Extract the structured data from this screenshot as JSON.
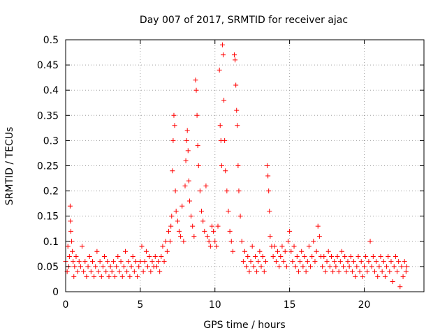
{
  "chart_data": {
    "type": "scatter",
    "title": "Day 007 of 2017, SRMTID for receiver ajac",
    "xlabel": "GPS time / hours",
    "ylabel": "SRMTID / TECUs",
    "xlim": [
      0,
      24
    ],
    "ylim": [
      0,
      0.5
    ],
    "xticks": [
      0,
      5,
      10,
      15,
      20
    ],
    "xtick_labels": [
      "0",
      "5",
      "10",
      "15",
      "20"
    ],
    "yticks": [
      0,
      0.05,
      0.1,
      0.15,
      0.2,
      0.25,
      0.3,
      0.35,
      0.4,
      0.45,
      0.5
    ],
    "ytick_labels": [
      "0",
      "0.05",
      "0.1",
      "0.15",
      "0.2",
      "0.25",
      "0.3",
      "0.35",
      "0.4",
      "0.45",
      "0.5"
    ],
    "grid": true,
    "marker": "+",
    "color": "#ff0000",
    "series": [
      {
        "name": "SRMTID",
        "points": [
          [
            0.0,
            0.06
          ],
          [
            0.1,
            0.04
          ],
          [
            0.15,
            0.09
          ],
          [
            0.2,
            0.05
          ],
          [
            0.25,
            0.07
          ],
          [
            0.3,
            0.17
          ],
          [
            0.32,
            0.14
          ],
          [
            0.35,
            0.12
          ],
          [
            0.4,
            0.1
          ],
          [
            0.45,
            0.08
          ],
          [
            0.5,
            0.06
          ],
          [
            0.55,
            0.03
          ],
          [
            0.6,
            0.05
          ],
          [
            0.7,
            0.07
          ],
          [
            0.8,
            0.04
          ],
          [
            0.9,
            0.06
          ],
          [
            1.0,
            0.05
          ],
          [
            1.1,
            0.09
          ],
          [
            1.2,
            0.04
          ],
          [
            1.3,
            0.06
          ],
          [
            1.4,
            0.03
          ],
          [
            1.5,
            0.05
          ],
          [
            1.6,
            0.07
          ],
          [
            1.7,
            0.04
          ],
          [
            1.8,
            0.06
          ],
          [
            1.9,
            0.03
          ],
          [
            2.0,
            0.05
          ],
          [
            2.1,
            0.08
          ],
          [
            2.2,
            0.04
          ],
          [
            2.3,
            0.06
          ],
          [
            2.4,
            0.03
          ],
          [
            2.5,
            0.05
          ],
          [
            2.6,
            0.07
          ],
          [
            2.7,
            0.04
          ],
          [
            2.8,
            0.06
          ],
          [
            2.9,
            0.03
          ],
          [
            3.0,
            0.05
          ],
          [
            3.1,
            0.04
          ],
          [
            3.2,
            0.06
          ],
          [
            3.3,
            0.03
          ],
          [
            3.4,
            0.05
          ],
          [
            3.5,
            0.07
          ],
          [
            3.6,
            0.04
          ],
          [
            3.7,
            0.06
          ],
          [
            3.8,
            0.03
          ],
          [
            3.9,
            0.05
          ],
          [
            4.0,
            0.08
          ],
          [
            4.1,
            0.04
          ],
          [
            4.2,
            0.06
          ],
          [
            4.3,
            0.03
          ],
          [
            4.4,
            0.05
          ],
          [
            4.5,
            0.07
          ],
          [
            4.6,
            0.04
          ],
          [
            4.7,
            0.06
          ],
          [
            4.8,
            0.03
          ],
          [
            4.9,
            0.05
          ],
          [
            5.0,
            0.06
          ],
          [
            5.1,
            0.09
          ],
          [
            5.2,
            0.04
          ],
          [
            5.3,
            0.06
          ],
          [
            5.4,
            0.08
          ],
          [
            5.5,
            0.05
          ],
          [
            5.6,
            0.07
          ],
          [
            5.7,
            0.04
          ],
          [
            5.8,
            0.06
          ],
          [
            5.9,
            0.05
          ],
          [
            6.0,
            0.07
          ],
          [
            6.1,
            0.05
          ],
          [
            6.2,
            0.06
          ],
          [
            6.3,
            0.04
          ],
          [
            6.4,
            0.07
          ],
          [
            6.5,
            0.09
          ],
          [
            6.6,
            0.06
          ],
          [
            6.7,
            0.1
          ],
          [
            6.8,
            0.08
          ],
          [
            6.9,
            0.12
          ],
          [
            7.0,
            0.1
          ],
          [
            7.05,
            0.13
          ],
          [
            7.1,
            0.15
          ],
          [
            7.15,
            0.24
          ],
          [
            7.2,
            0.3
          ],
          [
            7.25,
            0.35
          ],
          [
            7.3,
            0.33
          ],
          [
            7.35,
            0.2
          ],
          [
            7.4,
            0.16
          ],
          [
            7.5,
            0.14
          ],
          [
            7.6,
            0.12
          ],
          [
            7.7,
            0.11
          ],
          [
            7.8,
            0.17
          ],
          [
            7.9,
            0.1
          ],
          [
            8.0,
            0.21
          ],
          [
            8.05,
            0.26
          ],
          [
            8.1,
            0.3
          ],
          [
            8.15,
            0.32
          ],
          [
            8.2,
            0.28
          ],
          [
            8.25,
            0.22
          ],
          [
            8.3,
            0.18
          ],
          [
            8.4,
            0.15
          ],
          [
            8.5,
            0.13
          ],
          [
            8.6,
            0.11
          ],
          [
            8.7,
            0.42
          ],
          [
            8.75,
            0.4
          ],
          [
            8.8,
            0.35
          ],
          [
            8.85,
            0.29
          ],
          [
            8.9,
            0.25
          ],
          [
            9.0,
            0.2
          ],
          [
            9.1,
            0.16
          ],
          [
            9.2,
            0.14
          ],
          [
            9.3,
            0.12
          ],
          [
            9.4,
            0.21
          ],
          [
            9.5,
            0.11
          ],
          [
            9.6,
            0.1
          ],
          [
            9.7,
            0.09
          ],
          [
            9.8,
            0.13
          ],
          [
            9.9,
            0.12
          ],
          [
            10.0,
            0.1
          ],
          [
            10.1,
            0.09
          ],
          [
            10.2,
            0.13
          ],
          [
            10.3,
            0.44
          ],
          [
            10.35,
            0.33
          ],
          [
            10.4,
            0.3
          ],
          [
            10.45,
            0.25
          ],
          [
            10.5,
            0.49
          ],
          [
            10.55,
            0.47
          ],
          [
            10.6,
            0.38
          ],
          [
            10.65,
            0.3
          ],
          [
            10.7,
            0.24
          ],
          [
            10.8,
            0.2
          ],
          [
            10.9,
            0.16
          ],
          [
            11.0,
            0.12
          ],
          [
            11.1,
            0.1
          ],
          [
            11.2,
            0.08
          ],
          [
            11.3,
            0.47
          ],
          [
            11.35,
            0.46
          ],
          [
            11.4,
            0.41
          ],
          [
            11.45,
            0.36
          ],
          [
            11.5,
            0.33
          ],
          [
            11.55,
            0.25
          ],
          [
            11.6,
            0.2
          ],
          [
            11.7,
            0.15
          ],
          [
            11.8,
            0.1
          ],
          [
            11.9,
            0.06
          ],
          [
            12.0,
            0.08
          ],
          [
            12.1,
            0.05
          ],
          [
            12.2,
            0.07
          ],
          [
            12.3,
            0.04
          ],
          [
            12.4,
            0.06
          ],
          [
            12.5,
            0.09
          ],
          [
            12.6,
            0.05
          ],
          [
            12.7,
            0.07
          ],
          [
            12.8,
            0.04
          ],
          [
            12.9,
            0.06
          ],
          [
            13.0,
            0.08
          ],
          [
            13.1,
            0.05
          ],
          [
            13.2,
            0.07
          ],
          [
            13.3,
            0.04
          ],
          [
            13.4,
            0.06
          ],
          [
            13.5,
            0.25
          ],
          [
            13.55,
            0.23
          ],
          [
            13.6,
            0.2
          ],
          [
            13.65,
            0.16
          ],
          [
            13.7,
            0.11
          ],
          [
            13.8,
            0.09
          ],
          [
            13.9,
            0.07
          ],
          [
            14.0,
            0.09
          ],
          [
            14.1,
            0.06
          ],
          [
            14.2,
            0.08
          ],
          [
            14.3,
            0.05
          ],
          [
            14.4,
            0.07
          ],
          [
            14.5,
            0.09
          ],
          [
            14.6,
            0.06
          ],
          [
            14.7,
            0.08
          ],
          [
            14.8,
            0.05
          ],
          [
            14.9,
            0.1
          ],
          [
            15.0,
            0.12
          ],
          [
            15.1,
            0.08
          ],
          [
            15.2,
            0.06
          ],
          [
            15.3,
            0.09
          ],
          [
            15.4,
            0.05
          ],
          [
            15.5,
            0.07
          ],
          [
            15.6,
            0.04
          ],
          [
            15.7,
            0.06
          ],
          [
            15.8,
            0.08
          ],
          [
            15.9,
            0.05
          ],
          [
            16.0,
            0.07
          ],
          [
            16.1,
            0.04
          ],
          [
            16.2,
            0.06
          ],
          [
            16.3,
            0.09
          ],
          [
            16.4,
            0.05
          ],
          [
            16.5,
            0.07
          ],
          [
            16.6,
            0.1
          ],
          [
            16.7,
            0.06
          ],
          [
            16.8,
            0.08
          ],
          [
            16.9,
            0.13
          ],
          [
            17.0,
            0.11
          ],
          [
            17.1,
            0.07
          ],
          [
            17.2,
            0.05
          ],
          [
            17.3,
            0.07
          ],
          [
            17.4,
            0.04
          ],
          [
            17.5,
            0.06
          ],
          [
            17.6,
            0.08
          ],
          [
            17.7,
            0.05
          ],
          [
            17.8,
            0.07
          ],
          [
            17.9,
            0.04
          ],
          [
            18.0,
            0.06
          ],
          [
            18.1,
            0.05
          ],
          [
            18.2,
            0.07
          ],
          [
            18.3,
            0.04
          ],
          [
            18.4,
            0.06
          ],
          [
            18.5,
            0.08
          ],
          [
            18.6,
            0.05
          ],
          [
            18.7,
            0.07
          ],
          [
            18.8,
            0.04
          ],
          [
            18.9,
            0.06
          ],
          [
            19.0,
            0.05
          ],
          [
            19.1,
            0.07
          ],
          [
            19.2,
            0.04
          ],
          [
            19.3,
            0.06
          ],
          [
            19.4,
            0.03
          ],
          [
            19.5,
            0.05
          ],
          [
            19.6,
            0.07
          ],
          [
            19.7,
            0.04
          ],
          [
            19.8,
            0.06
          ],
          [
            19.9,
            0.03
          ],
          [
            20.0,
            0.05
          ],
          [
            20.1,
            0.07
          ],
          [
            20.2,
            0.04
          ],
          [
            20.3,
            0.06
          ],
          [
            20.4,
            0.1
          ],
          [
            20.5,
            0.05
          ],
          [
            20.6,
            0.07
          ],
          [
            20.7,
            0.04
          ],
          [
            20.8,
            0.06
          ],
          [
            20.9,
            0.03
          ],
          [
            21.0,
            0.05
          ],
          [
            21.1,
            0.07
          ],
          [
            21.2,
            0.04
          ],
          [
            21.3,
            0.06
          ],
          [
            21.4,
            0.03
          ],
          [
            21.5,
            0.05
          ],
          [
            21.6,
            0.07
          ],
          [
            21.7,
            0.04
          ],
          [
            21.8,
            0.06
          ],
          [
            21.9,
            0.02
          ],
          [
            22.0,
            0.05
          ],
          [
            22.1,
            0.07
          ],
          [
            22.2,
            0.04
          ],
          [
            22.3,
            0.06
          ],
          [
            22.4,
            0.01
          ],
          [
            22.5,
            0.05
          ],
          [
            22.6,
            0.03
          ],
          [
            22.7,
            0.06
          ],
          [
            22.8,
            0.04
          ],
          [
            22.85,
            0.05
          ]
        ]
      }
    ]
  }
}
